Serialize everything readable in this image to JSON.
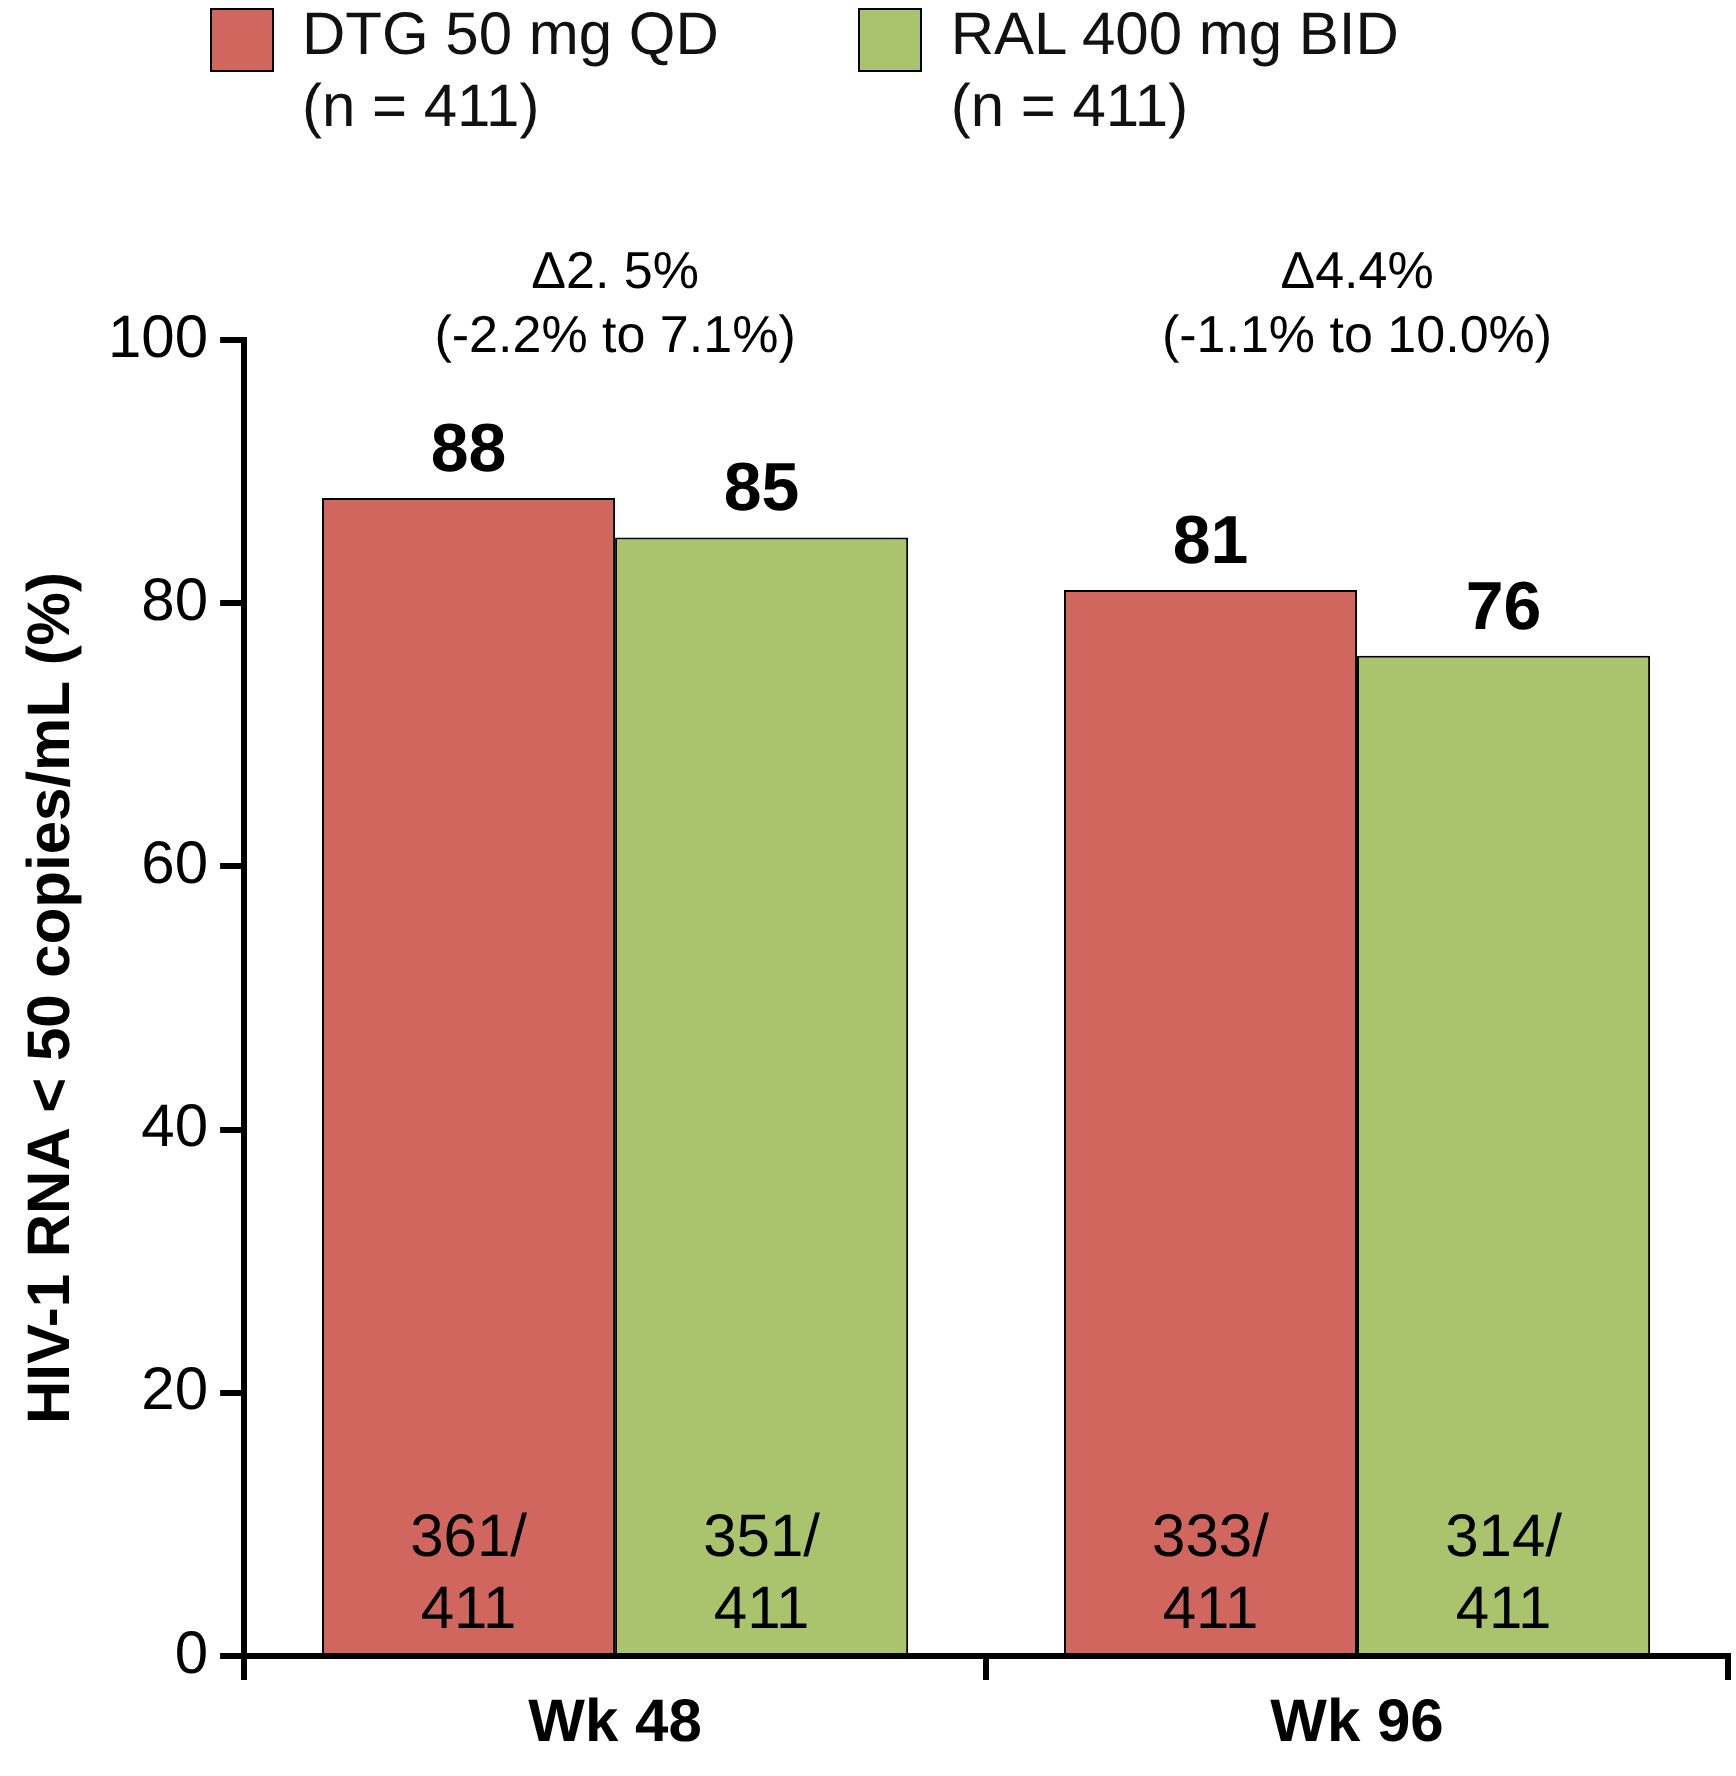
{
  "chart_data": {
    "type": "bar",
    "ylabel": "HIV-1 RNA < 50 copies/mL (%)",
    "categories": [
      "Wk 48",
      "Wk 96"
    ],
    "series": [
      {
        "name": "DTG 50 mg QD\n(n = 411)",
        "color": "#d0665e",
        "values": [
          88,
          81
        ],
        "value_labels": [
          "88",
          "81"
        ]
      },
      {
        "name": "RAL 400 mg BID\n(n = 411)",
        "color": "#a9c46c",
        "values": [
          85,
          76
        ],
        "value_labels": [
          "85",
          "76"
        ]
      }
    ],
    "ylim": [
      0,
      100
    ],
    "yticks": [
      0,
      20,
      40,
      60,
      80,
      100
    ],
    "grid": false,
    "legend": "top",
    "annotations": [
      "Δ2. 5%\n(-2.2% to 7.1%)",
      "Δ4.4%\n(-1.1% to 10.0%)",
      "361/\n411",
      "351/\n411",
      "333/\n411",
      "314/\n411"
    ]
  }
}
